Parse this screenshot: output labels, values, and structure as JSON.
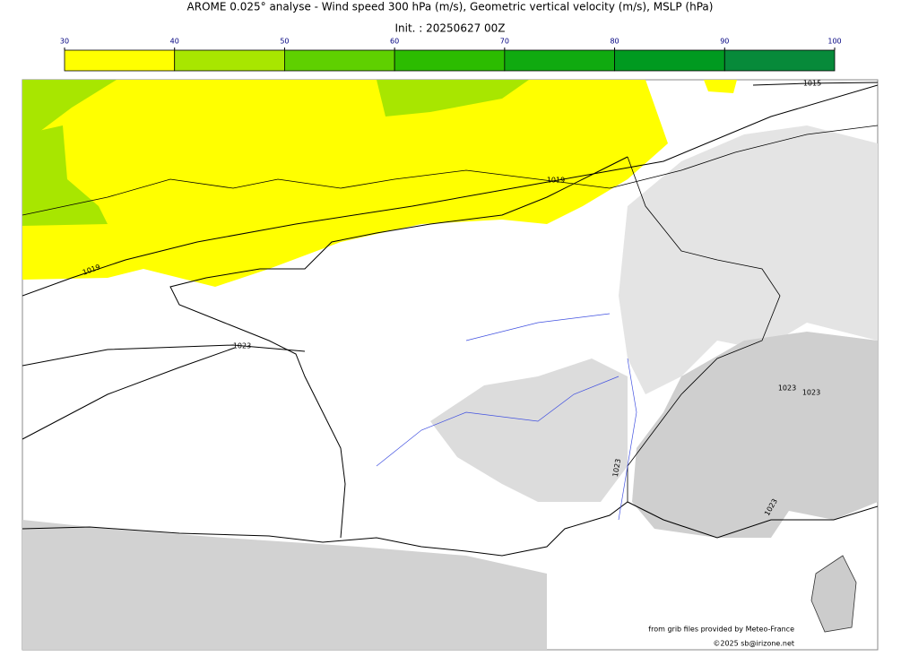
{
  "title": "AROME 0.025° analyse - Wind speed 300 hPa (m/s), Geometric vertical velocity (m/s), MSLP (hPa)",
  "init": "Init. : 20250627 00Z",
  "colorbar": {
    "ticks": [
      30,
      40,
      50,
      60,
      70,
      80,
      90,
      100
    ],
    "colors": [
      "#ffff00",
      "#a8e600",
      "#5fd000",
      "#2cbc00",
      "#10aa10",
      "#009a20",
      "#078a3a",
      "#087a50"
    ]
  },
  "isobar_labels": [
    "1015",
    "1019",
    "1019",
    "1023",
    "1023",
    "1023",
    "1023",
    "1023"
  ],
  "credits": [
    "from grib files provided by Meteo-France",
    "©2025 sb@irizone.net"
  ]
}
